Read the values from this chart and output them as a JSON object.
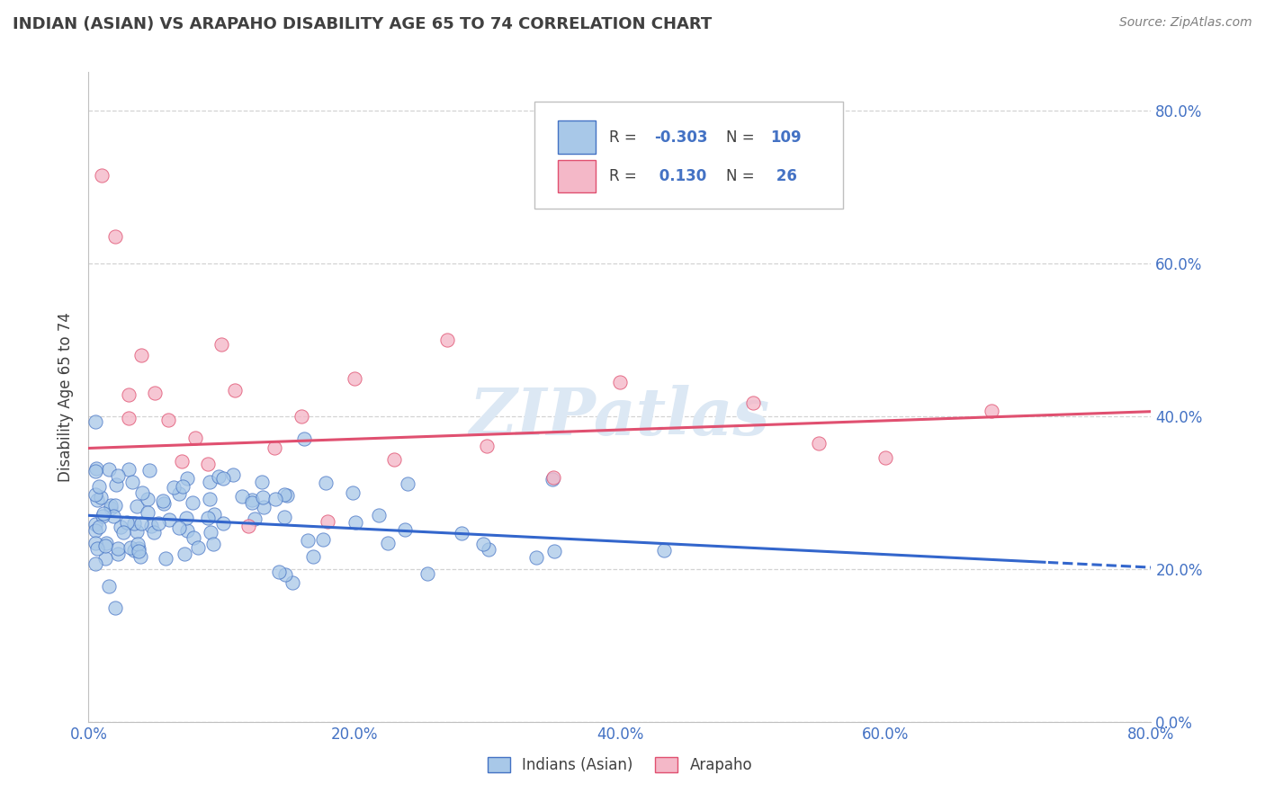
{
  "title": "INDIAN (ASIAN) VS ARAPAHO DISABILITY AGE 65 TO 74 CORRELATION CHART",
  "source": "Source: ZipAtlas.com",
  "ylabel": "Disability Age 65 to 74",
  "legend_label_blue": "Indians (Asian)",
  "legend_label_pink": "Arapaho",
  "R_blue": -0.303,
  "N_blue": 109,
  "R_pink": 0.13,
  "N_pink": 26,
  "xmin": 0.0,
  "xmax": 0.8,
  "ymin": 0.0,
  "ymax": 0.85,
  "blue_line_intercept": 0.27,
  "blue_line_slope": -0.085,
  "pink_line_intercept": 0.358,
  "pink_line_slope": 0.06,
  "blue_scatter_color": "#a8c8e8",
  "blue_edge_color": "#4472c4",
  "pink_scatter_color": "#f4b8c8",
  "pink_edge_color": "#e05070",
  "blue_line_color": "#3366cc",
  "pink_line_color": "#e05070",
  "bg_color": "#ffffff",
  "grid_color": "#c8c8c8",
  "title_color": "#404040",
  "axis_tick_color": "#4472c4",
  "source_color": "#808080",
  "watermark_color": "#dce8f4",
  "legend_border_color": "#c0c0c0"
}
